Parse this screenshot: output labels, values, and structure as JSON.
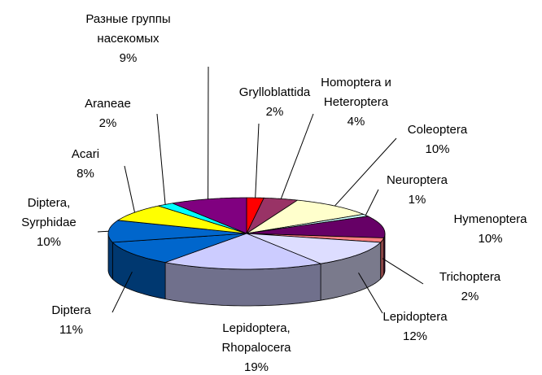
{
  "chart_data": {
    "type": "pie3d",
    "categories": [
      "Grylloblattida",
      "Homoptera и Heteroptera",
      "Coleoptera",
      "Neuroptera",
      "Hymenoptera",
      "Trichoptera",
      "Lepidoptera",
      "Lepidoptera, Rhopalocera",
      "Diptera",
      "Diptera, Syrphidae",
      "Acari",
      "Araneae",
      "Разные группы насекомых"
    ],
    "values": [
      2,
      4,
      10,
      1,
      10,
      2,
      12,
      19,
      11,
      10,
      8,
      2,
      9
    ],
    "value_labels": [
      "2%",
      "4%",
      "10%",
      "1%",
      "10%",
      "2%",
      "12%",
      "19%",
      "11%",
      "10%",
      "8%",
      "2%",
      "9%"
    ],
    "colors": [
      "#ff0000",
      "#993366",
      "#ffffcc",
      "#ccffff",
      "#660066",
      "#ff8080",
      "#ddddff",
      "#ccccff",
      "#0066cc",
      "#0066cc",
      "#ffff00",
      "#00ffff",
      "#800080"
    ]
  }
}
